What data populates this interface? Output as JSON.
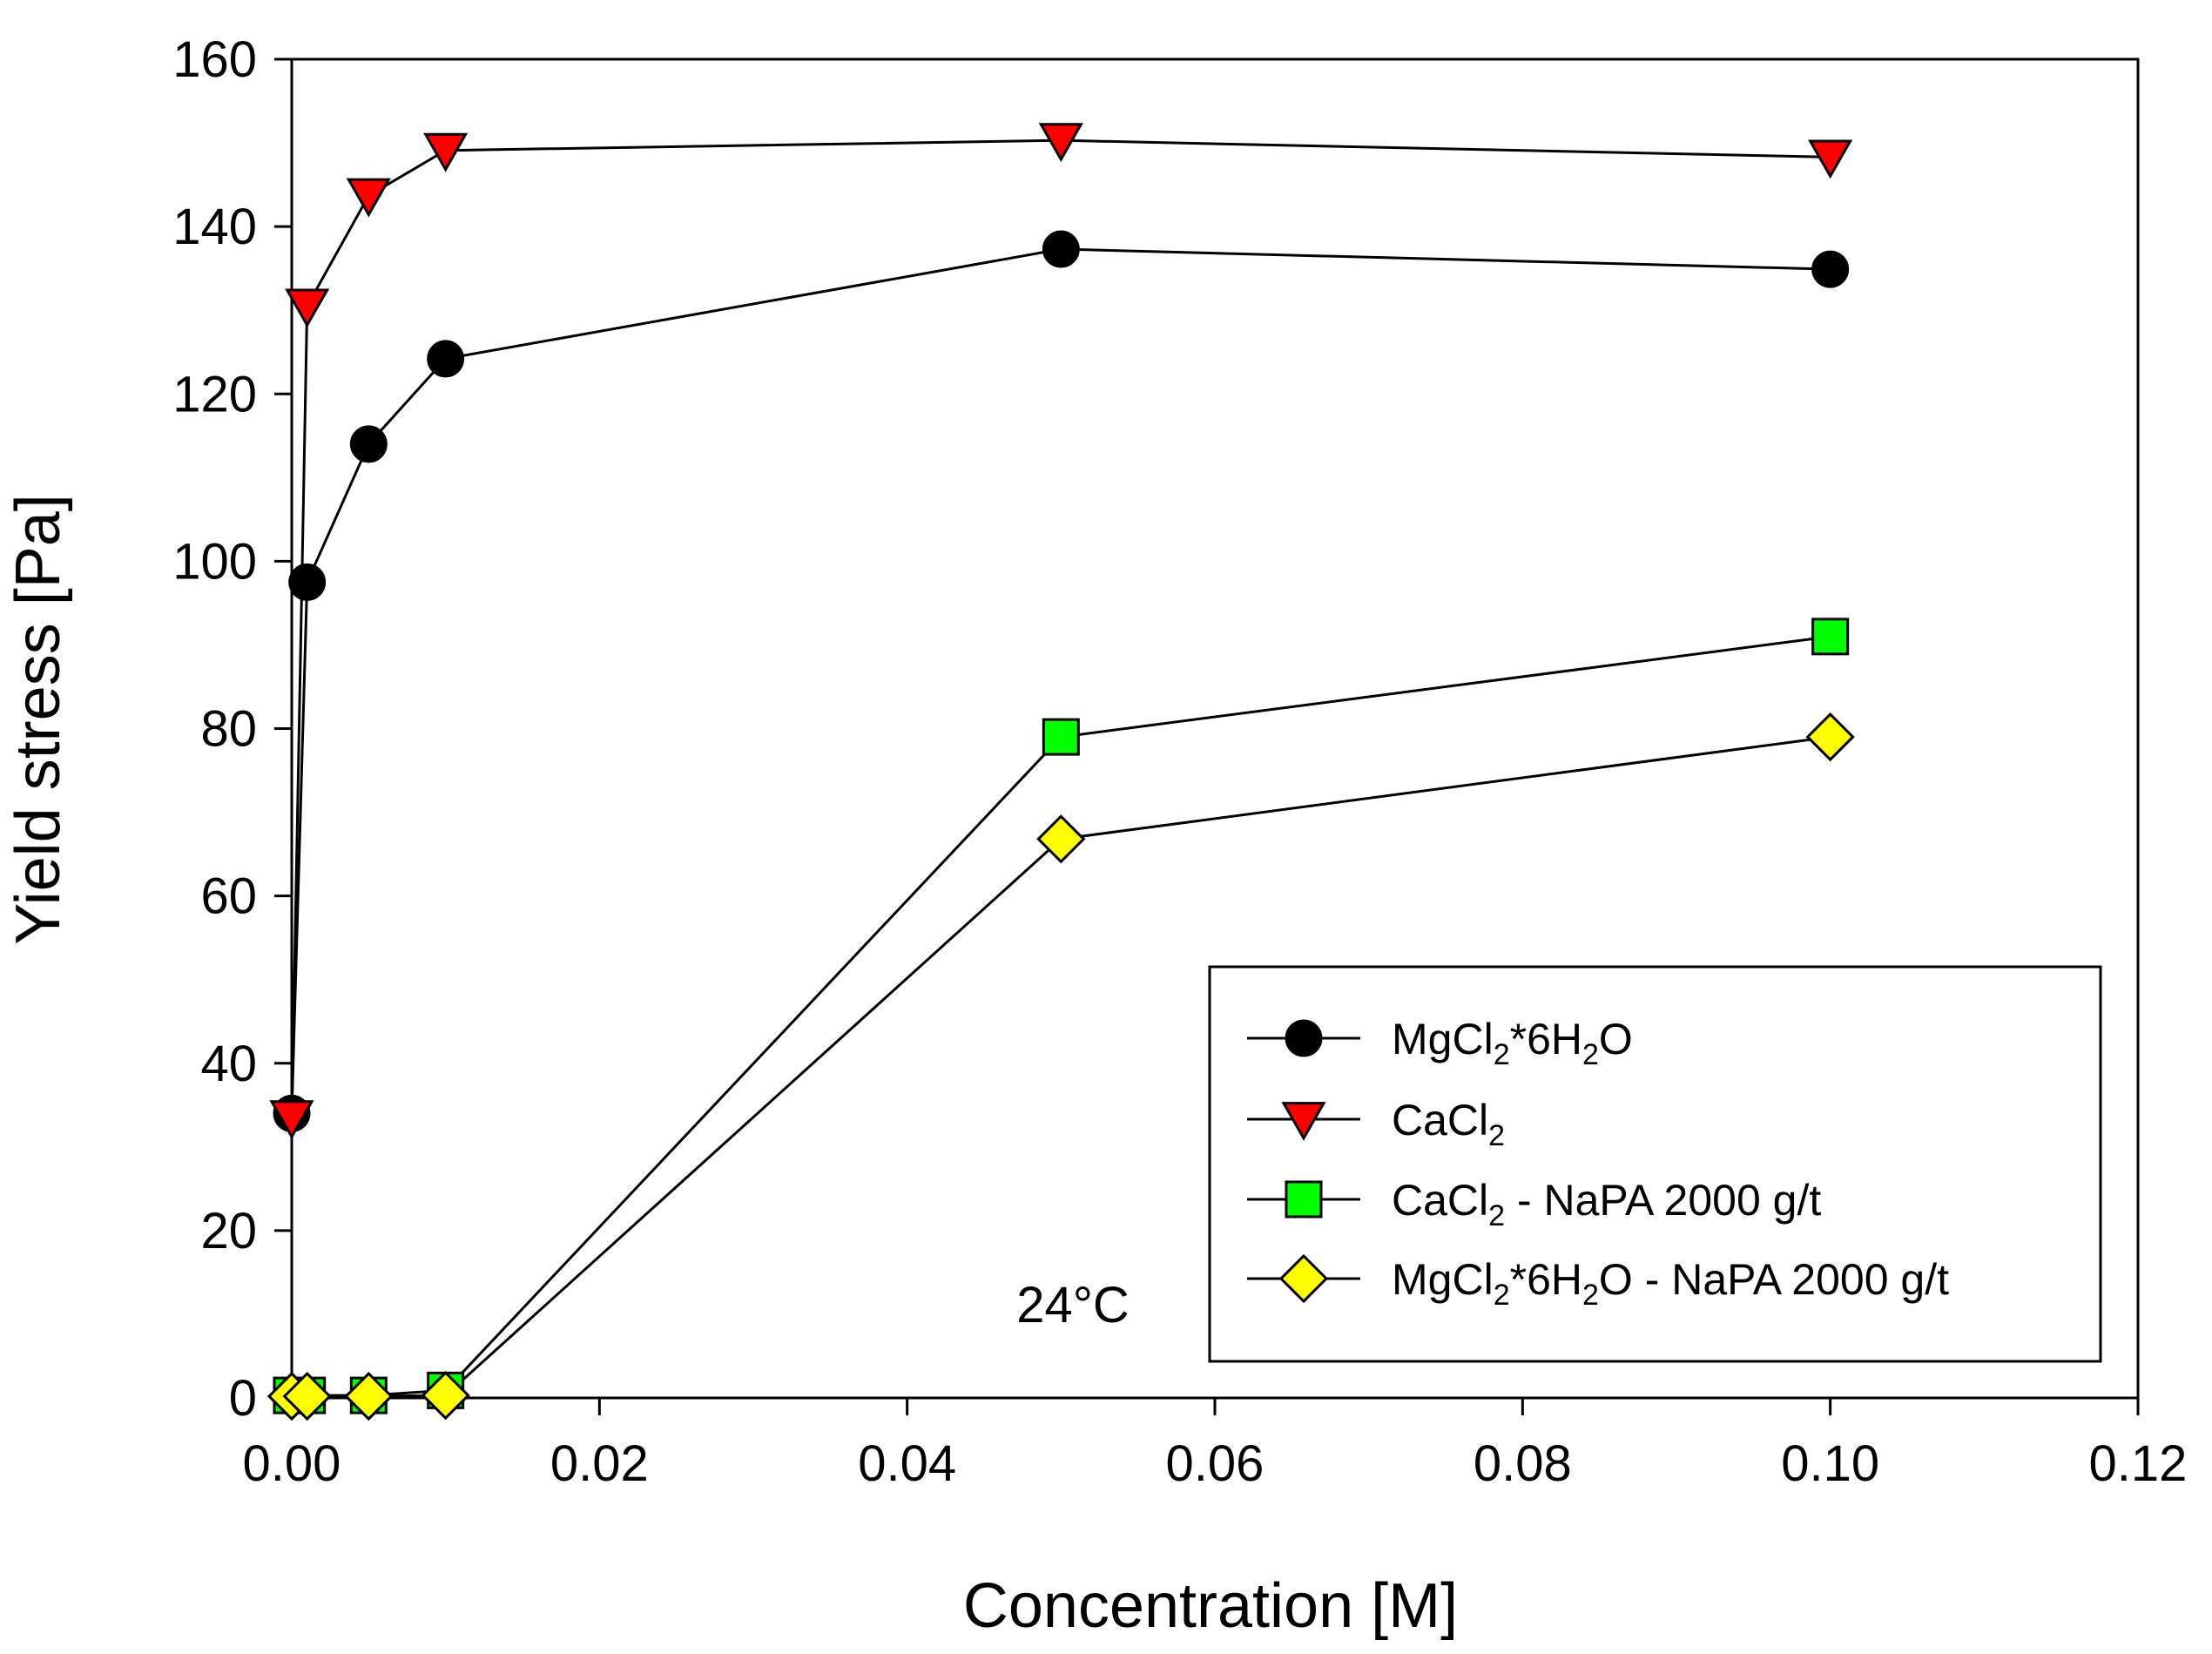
{
  "chart_data": {
    "type": "line",
    "xlabel": "Concentration [M]",
    "ylabel": "Yield stress [Pa]",
    "xlim": [
      0,
      0.12
    ],
    "ylim": [
      0,
      160
    ],
    "x_ticks": [
      "0.00",
      "0.02",
      "0.04",
      "0.06",
      "0.08",
      "0.10",
      "0.12"
    ],
    "y_ticks": [
      "0",
      "20",
      "40",
      "60",
      "80",
      "100",
      "120",
      "140",
      "160"
    ],
    "grid": false,
    "legend_position": "bottom-right",
    "annotation": "24°C",
    "series": [
      {
        "name": "MgCl2*6H2O",
        "legend_parts": [
          [
            "MgCl",
            ""
          ],
          [
            "2",
            "sub"
          ],
          [
            "*6H",
            ""
          ],
          [
            "2",
            "sub"
          ],
          [
            "O",
            ""
          ]
        ],
        "marker": "circle",
        "color": "#000000",
        "x": [
          0,
          0.001,
          0.005,
          0.01,
          0.05,
          0.1
        ],
        "y": [
          34,
          97.5,
          114,
          124.2,
          137.3,
          134.9
        ]
      },
      {
        "name": "CaCl2",
        "legend_parts": [
          [
            "CaCl",
            ""
          ],
          [
            "2",
            "sub"
          ]
        ],
        "marker": "triangle-down",
        "color": "#ff0000",
        "x": [
          0,
          0.001,
          0.005,
          0.01,
          0.05,
          0.1
        ],
        "y": [
          33.5,
          130.5,
          143.7,
          149.1,
          150.3,
          148.3
        ]
      },
      {
        "name": "CaCl2 - NaPA 2000 g/t",
        "legend_parts": [
          [
            "CaCl",
            ""
          ],
          [
            "2",
            "sub"
          ],
          [
            " - NaPA 2000 g/t",
            ""
          ]
        ],
        "marker": "square",
        "color": "#00ff00",
        "x": [
          0,
          0.001,
          0.005,
          0.01,
          0.05,
          0.1
        ],
        "y": [
          0.3,
          0.3,
          0.3,
          0.9,
          79,
          91
        ]
      },
      {
        "name": "MgCl2*6H2O - NaPA 2000 g/t",
        "legend_parts": [
          [
            "MgCl",
            ""
          ],
          [
            "2",
            "sub"
          ],
          [
            "*6H",
            ""
          ],
          [
            "2",
            "sub"
          ],
          [
            "O - NaPA 2000 g/t",
            ""
          ]
        ],
        "marker": "diamond",
        "color": "#ffff00",
        "x": [
          0,
          0.001,
          0.005,
          0.01,
          0.05,
          0.1
        ],
        "y": [
          0.2,
          0.2,
          0.2,
          0.3,
          66.8,
          79
        ]
      }
    ]
  }
}
